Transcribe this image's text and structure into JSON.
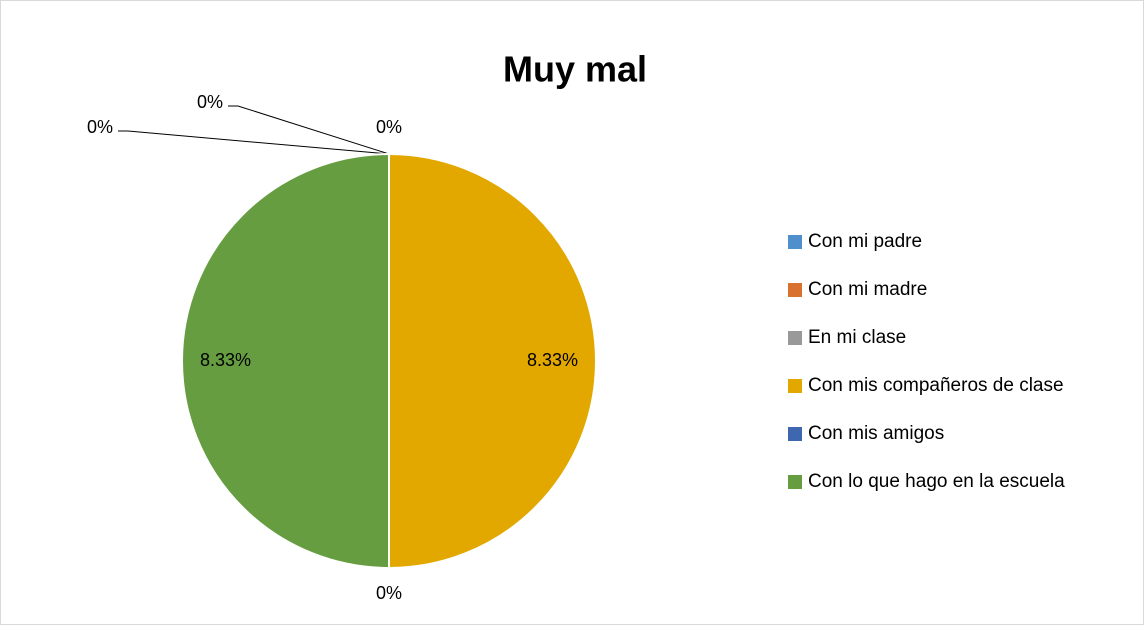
{
  "chart_data": {
    "type": "pie",
    "title": "Muy mal",
    "categories": [
      "Con mi padre",
      "Con mi madre",
      "En mi clase",
      "Con mis compañeros de clase",
      "Con mis amigos",
      "Con lo que hago en la escuela"
    ],
    "values": [
      0,
      0,
      0,
      8.33,
      0,
      8.33
    ],
    "value_labels": [
      "0%",
      "0%",
      "0%",
      "8.33%",
      "0%",
      "8.33%"
    ],
    "colors": [
      "#4f8fcc",
      "#d9722f",
      "#999999",
      "#e2a800",
      "#3f67b0",
      "#659d40"
    ],
    "legend": "right"
  }
}
